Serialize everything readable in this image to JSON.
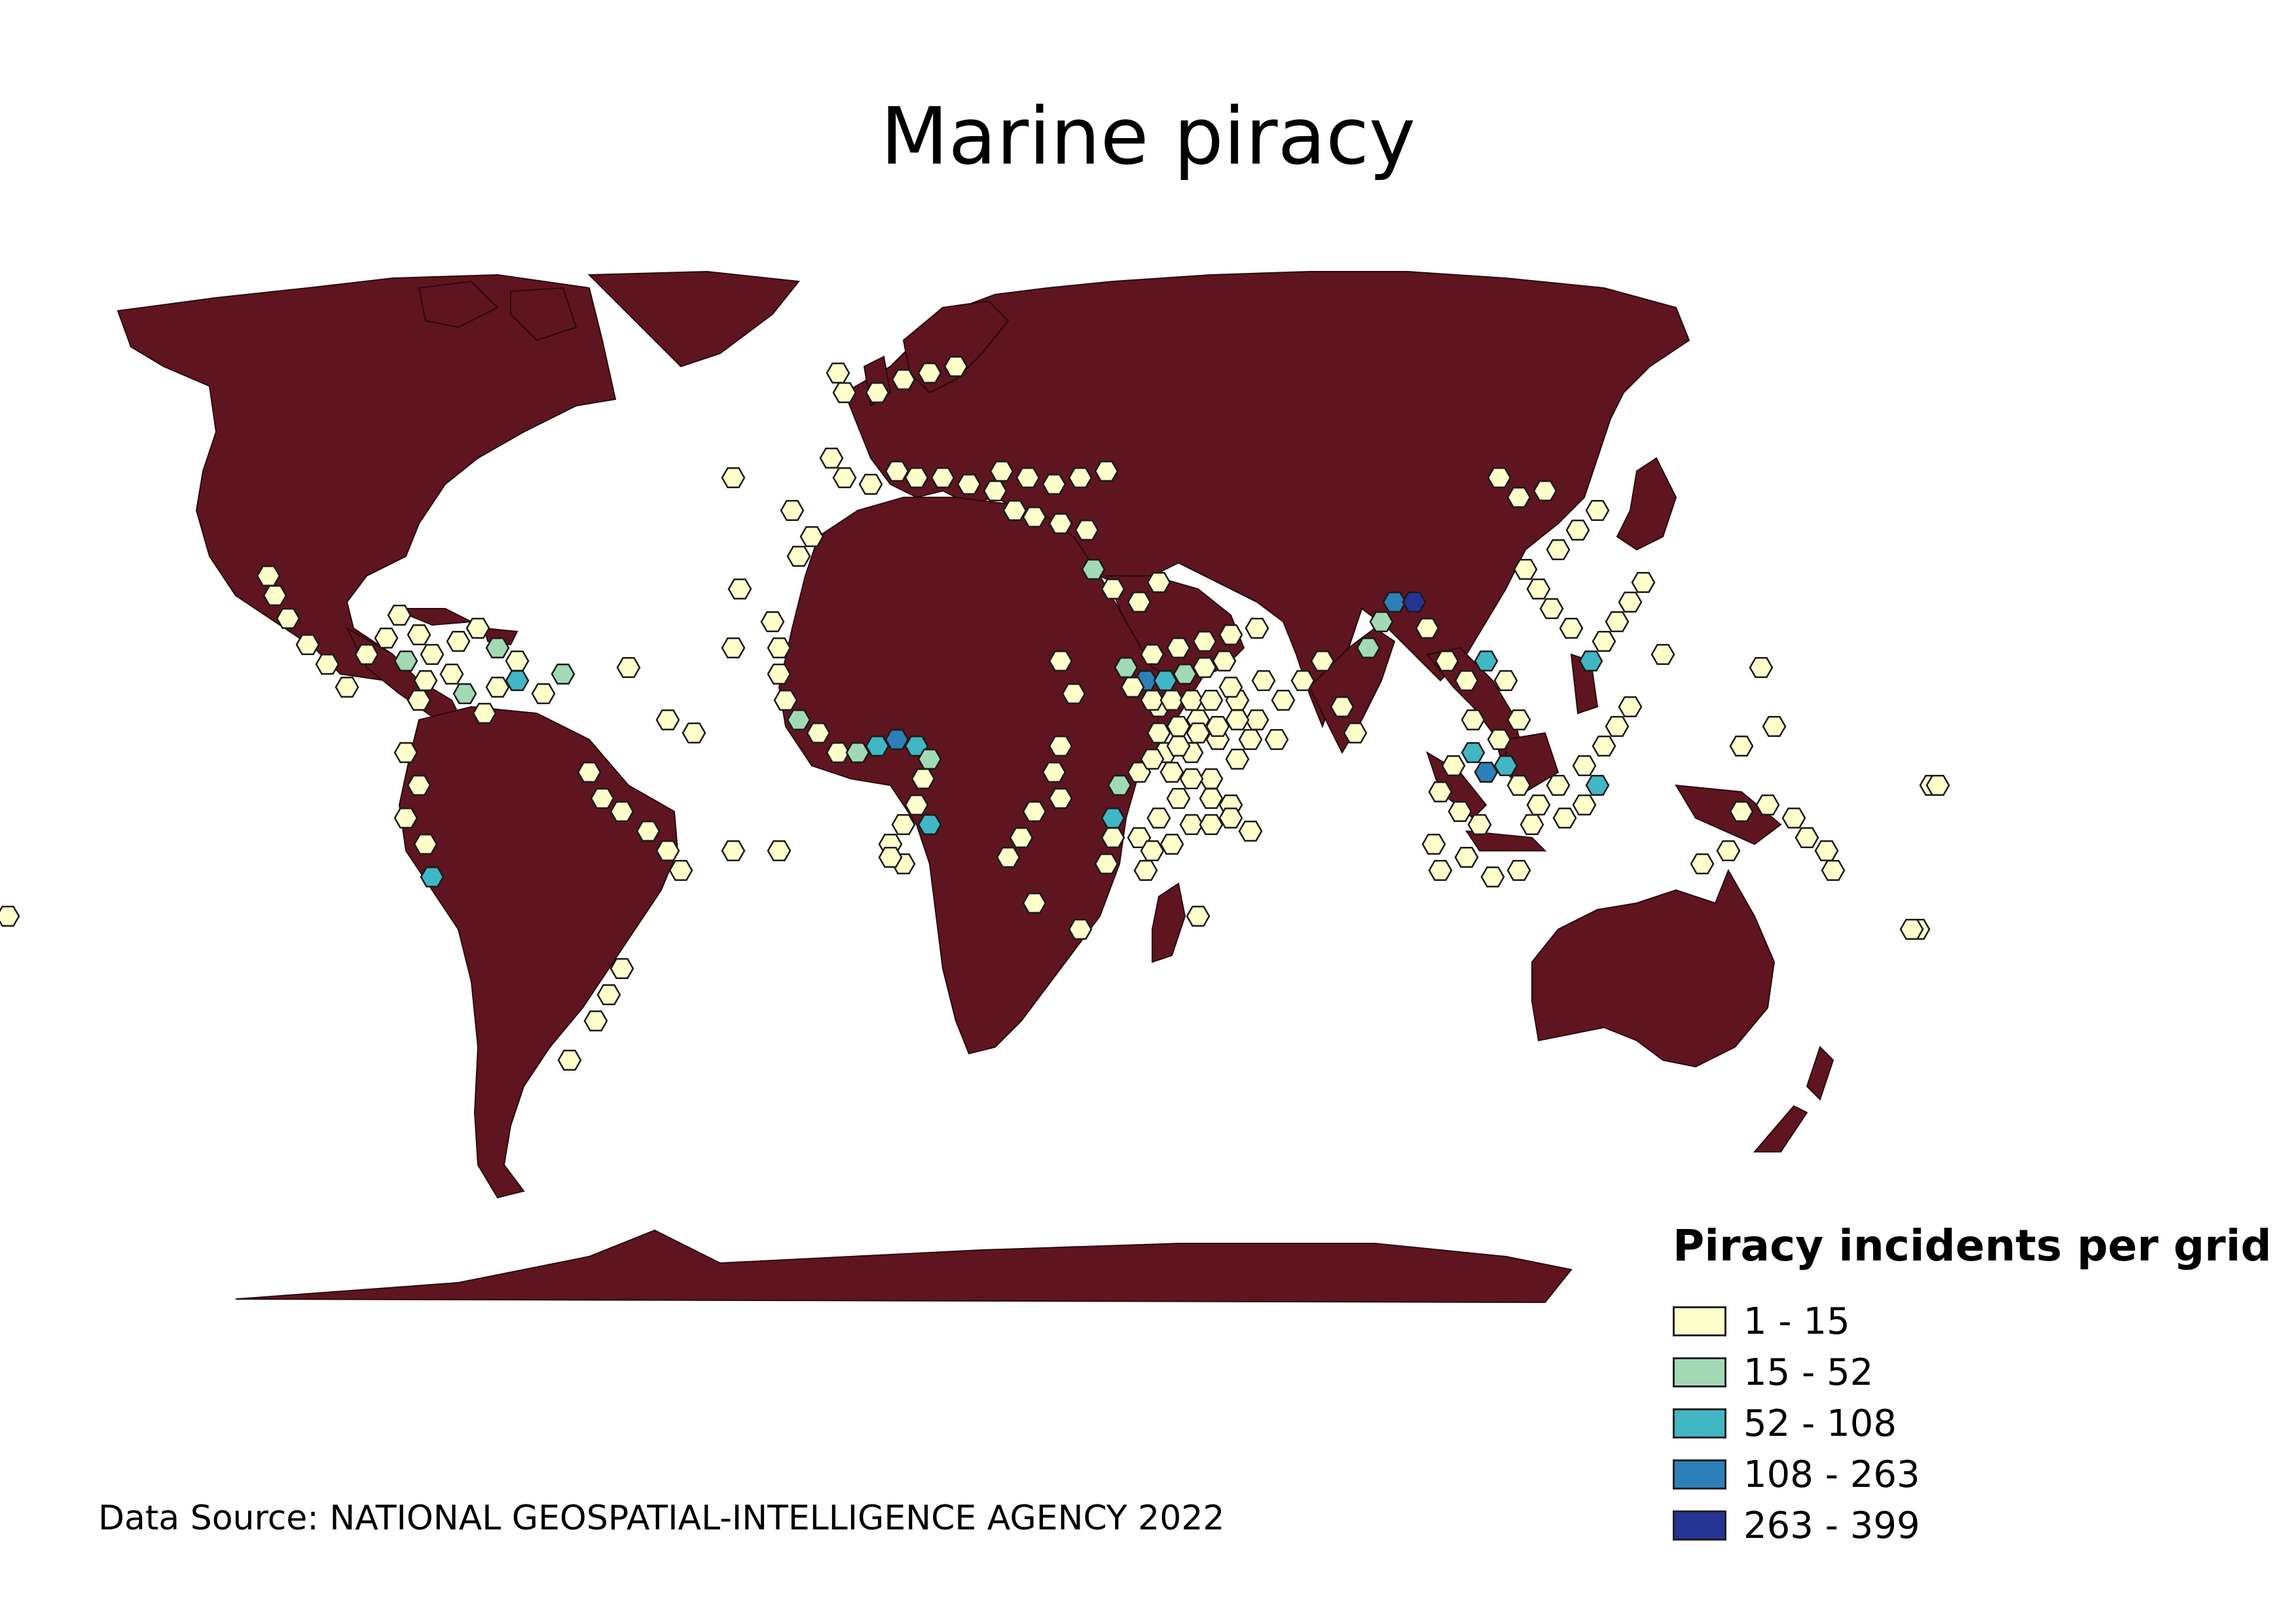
{
  "title": "Marine piracy",
  "colors": {
    "land": "#5e1520",
    "land_border": "#2a0a0f",
    "ocean": "#ffffff",
    "hex_border": "#1a1a1a"
  },
  "legend": {
    "title": "Piracy incidents per grid",
    "classes": [
      {
        "label": "1 - 15",
        "color": "#ffffcc"
      },
      {
        "label": "15 - 52",
        "color": "#a1dab4"
      },
      {
        "label": "52 - 108",
        "color": "#41b6c4"
      },
      {
        "label": "108 - 263",
        "color": "#2c7fb8"
      },
      {
        "label": "263 - 399",
        "color": "#253494"
      }
    ]
  },
  "source": "Data Source: NATIONAL GEOSPATIAL-INTELLIGENCE AGENCY 2022"
}
